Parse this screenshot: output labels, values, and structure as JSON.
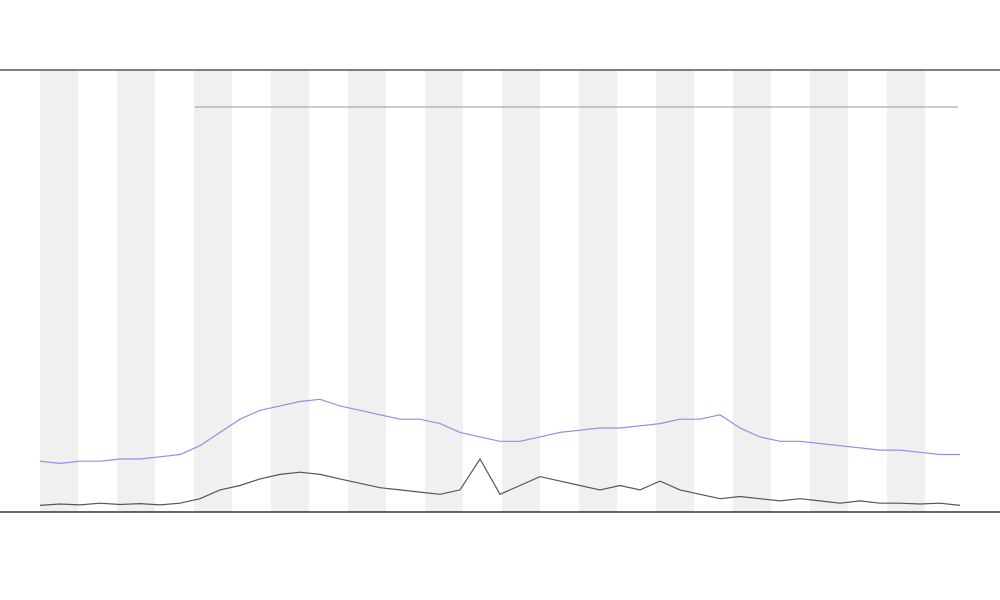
{
  "chart_data": {
    "type": "line",
    "x": [
      0,
      1,
      2,
      3,
      4,
      5,
      6,
      7,
      8,
      9,
      10,
      11,
      12,
      13,
      14,
      15,
      16,
      17,
      18,
      19,
      20,
      21,
      22,
      23,
      24,
      25,
      26,
      27,
      28,
      29,
      30,
      31,
      32,
      33,
      34,
      35,
      36,
      37,
      38,
      39,
      40,
      41,
      42,
      43,
      44,
      45,
      46
    ],
    "xlim": [
      0,
      46
    ],
    "ylim": [
      0,
      100
    ],
    "series": [
      {
        "color": "#555555",
        "values": [
          1.5,
          1.8,
          1.6,
          2,
          1.7,
          1.9,
          1.6,
          2,
          3,
          5,
          6,
          7.5,
          8.5,
          9,
          8.5,
          7.5,
          6.5,
          5.5,
          5,
          4.5,
          4,
          5,
          12,
          4,
          6,
          8,
          7,
          6,
          5,
          6,
          5,
          7,
          5,
          4,
          3,
          3.5,
          3,
          2.5,
          3,
          2.5,
          2,
          2.5,
          2,
          2,
          1.8,
          2,
          1.5
        ]
      },
      {
        "color": "#8f8fe8",
        "values": [
          11.5,
          11,
          11.5,
          11.5,
          12,
          12,
          12.5,
          13,
          15,
          18,
          21,
          23,
          24,
          25,
          25.5,
          24,
          23,
          22,
          21,
          21,
          20,
          18,
          17,
          16,
          16,
          17,
          18,
          18.5,
          19,
          19,
          19.5,
          20,
          21,
          21,
          22,
          19,
          17,
          16,
          16,
          15.5,
          15,
          14.5,
          14,
          14,
          13.5,
          13,
          13
        ]
      }
    ]
  }
}
